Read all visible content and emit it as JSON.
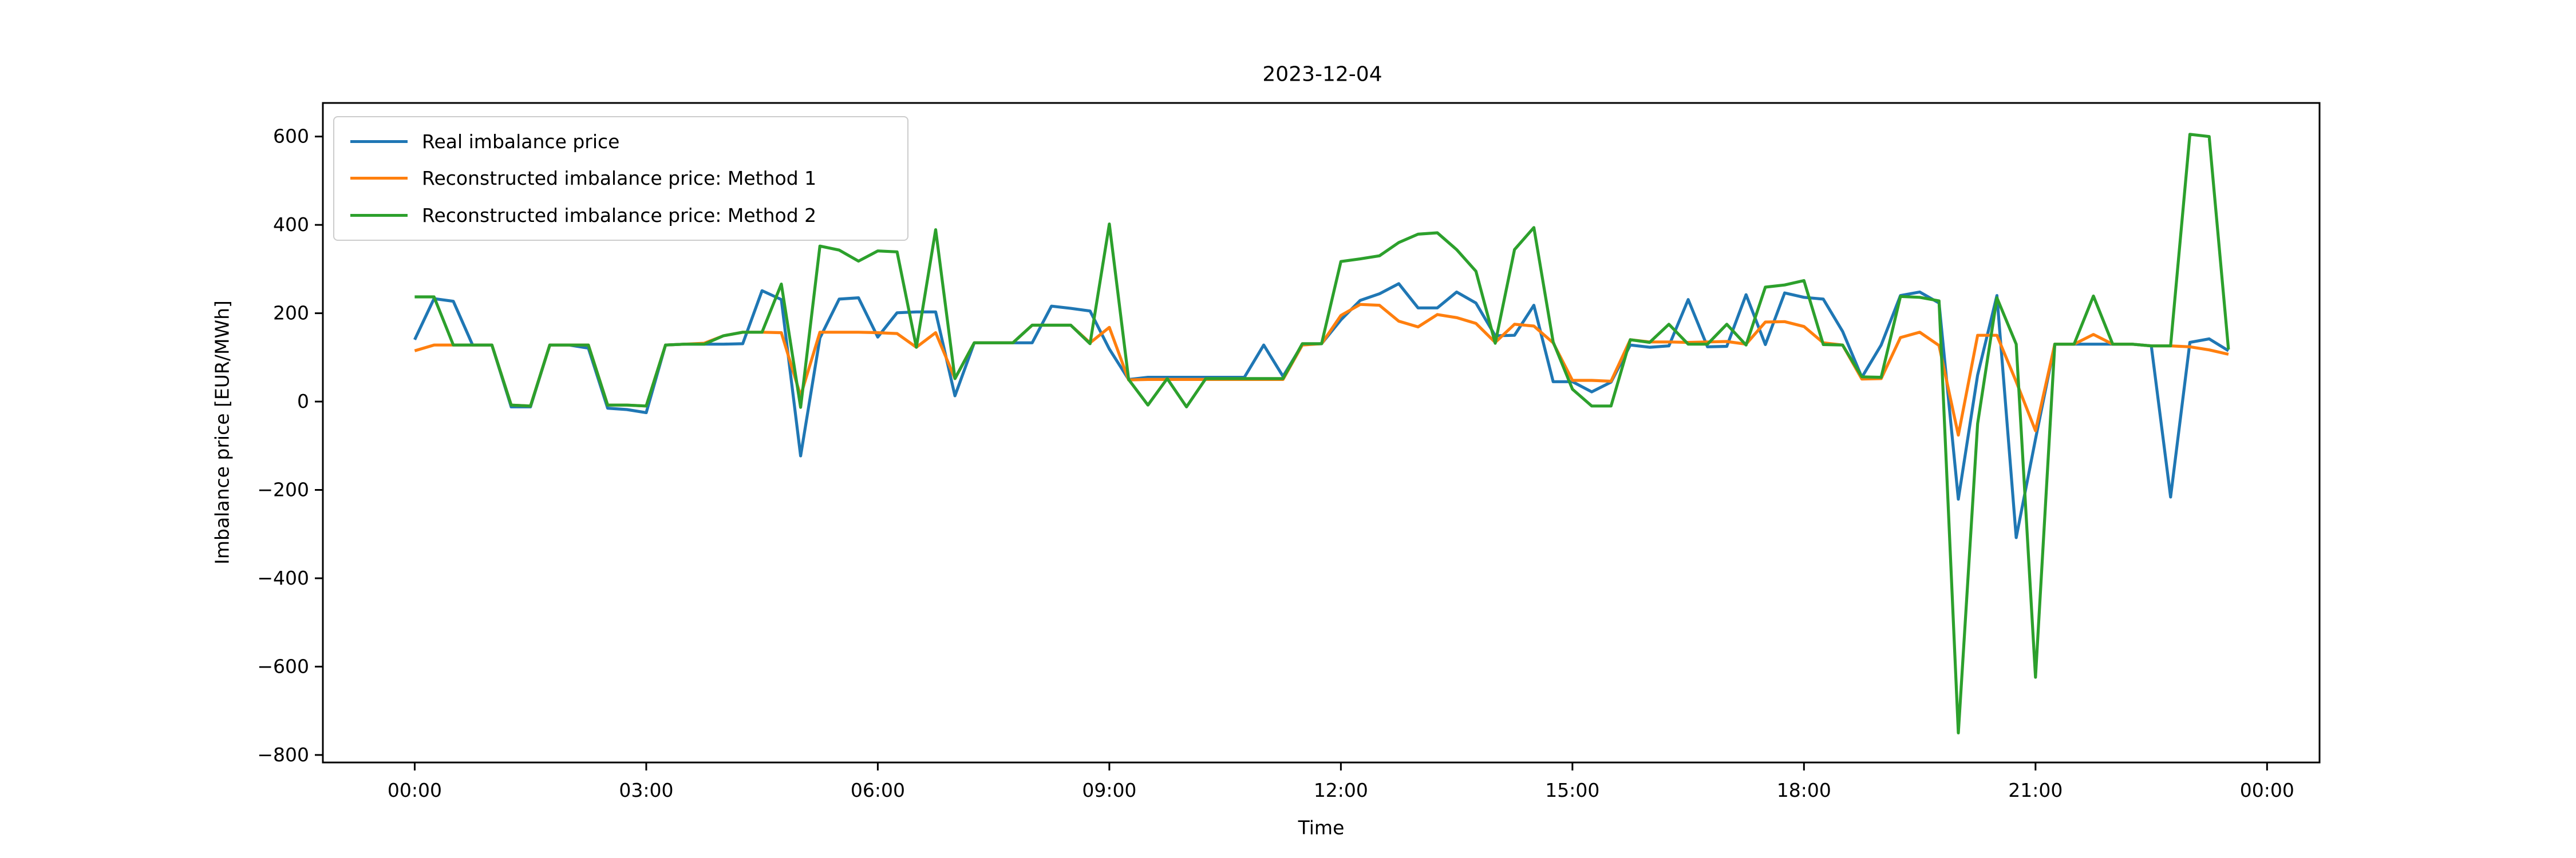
{
  "chart_data": {
    "type": "line",
    "title": "2023-12-04",
    "xlabel": "Time",
    "ylabel": "Imbalance price [EUR/MWh]",
    "grid": false,
    "legend_position": "upper left",
    "x_step_minutes": 15,
    "x": [
      "00:00",
      "00:15",
      "00:30",
      "00:45",
      "01:00",
      "01:15",
      "01:30",
      "01:45",
      "02:00",
      "02:15",
      "02:30",
      "02:45",
      "03:00",
      "03:15",
      "03:30",
      "03:45",
      "04:00",
      "04:15",
      "04:30",
      "04:45",
      "05:00",
      "05:15",
      "05:30",
      "05:45",
      "06:00",
      "06:15",
      "06:30",
      "06:45",
      "07:00",
      "07:15",
      "07:30",
      "07:45",
      "08:00",
      "08:15",
      "08:30",
      "08:45",
      "09:00",
      "09:15",
      "09:30",
      "09:45",
      "10:00",
      "10:15",
      "10:30",
      "10:45",
      "11:00",
      "11:15",
      "11:30",
      "11:45",
      "12:00",
      "12:15",
      "12:30",
      "12:45",
      "13:00",
      "13:15",
      "13:30",
      "13:45",
      "14:00",
      "14:15",
      "14:30",
      "14:45",
      "15:00",
      "15:15",
      "15:30",
      "15:45",
      "16:00",
      "16:15",
      "16:30",
      "16:45",
      "17:00",
      "17:15",
      "17:30",
      "17:45",
      "18:00",
      "18:15",
      "18:30",
      "18:45",
      "19:00",
      "19:15",
      "19:30",
      "19:45",
      "20:00",
      "20:15",
      "20:30",
      "20:45",
      "21:00",
      "21:15",
      "21:30",
      "21:45",
      "22:00",
      "22:15",
      "22:30",
      "22:45",
      "23:00",
      "23:15",
      "23:30"
    ],
    "series": [
      {
        "name": "Real imbalance price",
        "color": "#1f77b4",
        "values": [
          140,
          233,
          227,
          128,
          128,
          -12,
          -12,
          128,
          128,
          121,
          -15,
          -18,
          -25,
          128,
          130,
          130,
          130,
          131,
          251,
          231,
          -123,
          144,
          232,
          235,
          146,
          201,
          203,
          203,
          13,
          133,
          133,
          133,
          133,
          216,
          211,
          205,
          119,
          50,
          55,
          55,
          55,
          55,
          55,
          55,
          128,
          57,
          129,
          131,
          185,
          229,
          244,
          267,
          212,
          212,
          248,
          223,
          149,
          150,
          218,
          45,
          45,
          22,
          44,
          128,
          123,
          126,
          231,
          124,
          125,
          242,
          129,
          246,
          236,
          232,
          159,
          55,
          128,
          240,
          248,
          223,
          -221,
          60,
          240,
          -308,
          -85,
          130,
          130,
          130,
          130,
          130,
          126,
          -216,
          134,
          142,
          115
        ]
      },
      {
        "name": "Reconstructed imbalance price: Method 1",
        "color": "#ff7f0e",
        "values": [
          115,
          128,
          128,
          128,
          128,
          -8,
          -10,
          128,
          128,
          128,
          -8,
          -8,
          -10,
          128,
          130,
          132,
          149,
          157,
          157,
          156,
          13,
          157,
          157,
          157,
          156,
          154,
          123,
          156,
          52,
          133,
          133,
          133,
          173,
          173,
          173,
          133,
          168,
          49,
          50,
          50,
          50,
          50,
          50,
          50,
          50,
          50,
          128,
          131,
          195,
          220,
          218,
          182,
          169,
          197,
          190,
          177,
          134,
          175,
          171,
          133,
          48,
          48,
          46,
          140,
          135,
          135,
          134,
          135,
          136,
          130,
          180,
          181,
          170,
          133,
          128,
          51,
          52,
          145,
          157,
          127,
          -76,
          150,
          150,
          45,
          -66,
          130,
          130,
          152,
          130,
          130,
          126,
          126,
          124,
          117,
          107
        ]
      },
      {
        "name": "Reconstructed imbalance price: Method 2",
        "color": "#2ca02c",
        "values": [
          237,
          237,
          128,
          128,
          128,
          -8,
          -10,
          128,
          128,
          128,
          -8,
          -8,
          -10,
          128,
          130,
          130,
          149,
          157,
          157,
          266,
          -13,
          352,
          343,
          318,
          341,
          339,
          123,
          389,
          52,
          133,
          133,
          133,
          173,
          173,
          173,
          131,
          402,
          50,
          -8,
          52,
          -12,
          52,
          52,
          52,
          52,
          52,
          131,
          131,
          317,
          323,
          330,
          360,
          379,
          382,
          344,
          295,
          132,
          344,
          394,
          135,
          28,
          -10,
          -10,
          140,
          134,
          175,
          130,
          130,
          175,
          128,
          259,
          264,
          274,
          129,
          128,
          56,
          55,
          238,
          236,
          228,
          -750,
          -50,
          235,
          130,
          -624,
          130,
          130,
          239,
          130,
          130,
          126,
          126,
          605,
          600,
          118
        ]
      }
    ],
    "xticks": {
      "hours": [
        0,
        3,
        6,
        9,
        12,
        15,
        18,
        21,
        24
      ],
      "labels": [
        "00:00",
        "03:00",
        "06:00",
        "09:00",
        "12:00",
        "15:00",
        "18:00",
        "21:00",
        "00:00"
      ]
    },
    "yticks": {
      "values": [
        600,
        400,
        200,
        0,
        -200,
        -400,
        -600,
        -800
      ],
      "labels": [
        "600",
        "400",
        "200",
        "0",
        "−200",
        "−400",
        "−600",
        "−800"
      ]
    },
    "xlim_hours": [
      -1.19,
      24.68
    ],
    "ylim": [
      -817,
      676
    ]
  }
}
